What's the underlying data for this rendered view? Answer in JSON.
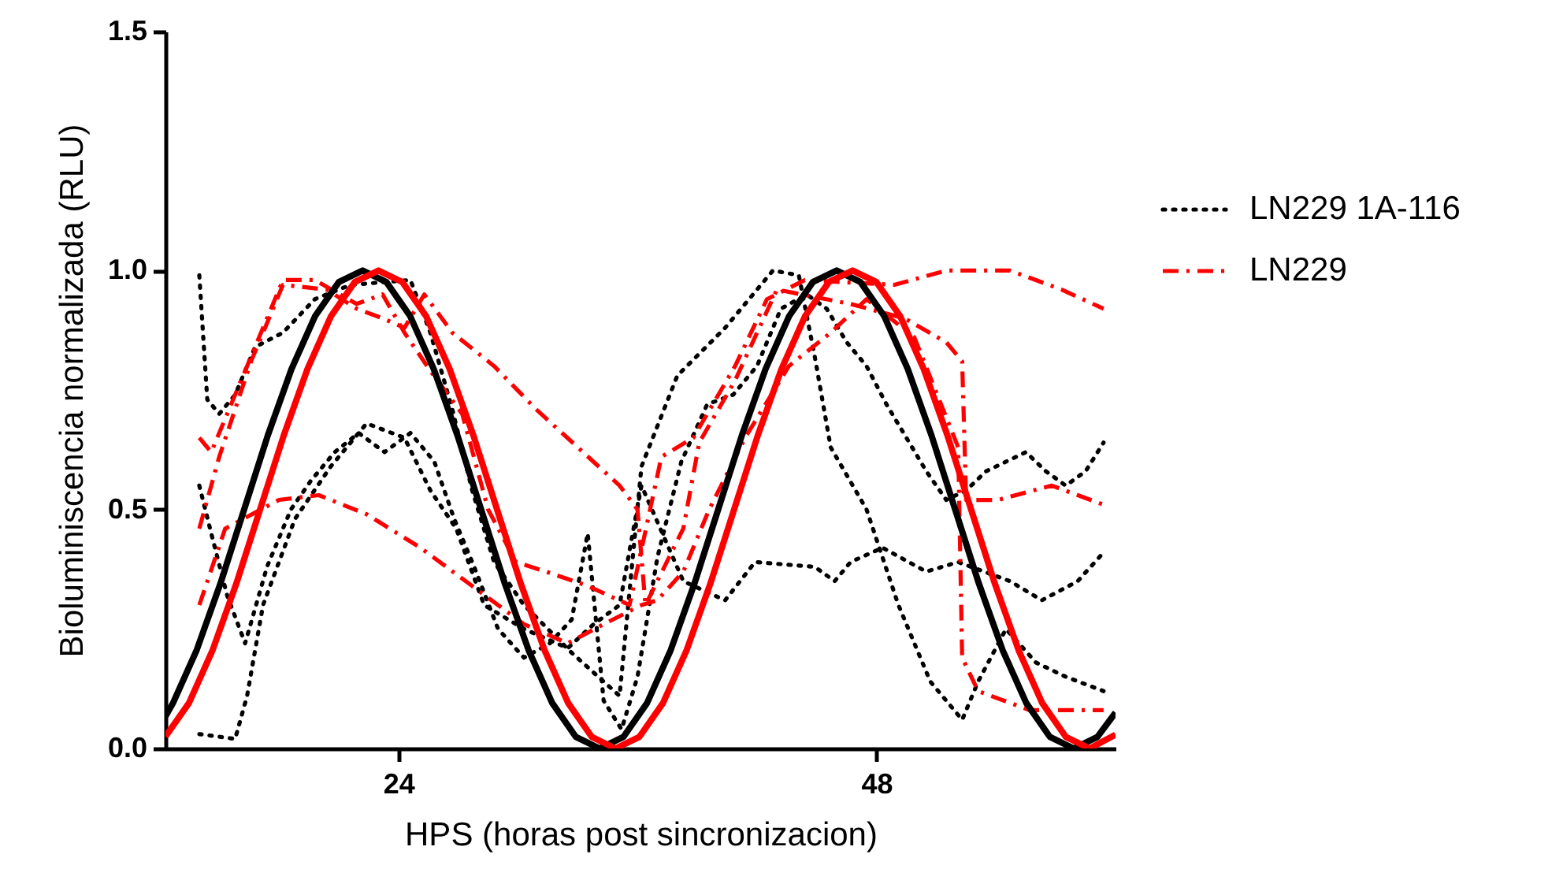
{
  "chart_data": {
    "type": "line",
    "xlabel": "HPS (horas post sincronizacion)",
    "ylabel": "Bioluminiscencia normalizada (RLU)",
    "xlim": [
      12.3,
      60
    ],
    "xticks": [
      24,
      48
    ],
    "ylim": [
      0,
      1.5
    ],
    "yticks": [
      {
        "value": 0,
        "label": "0.0"
      },
      0.5,
      {
        "value": 1,
        "label": "1.0"
      },
      1.5
    ],
    "grid": false,
    "legend": "right",
    "marker": "none",
    "series": [
      {
        "name": "LN229 1A-116",
        "color": "#000000",
        "line_style": "dotted",
        "x": [
          14.0,
          14.4,
          15.0,
          15.8,
          16.8,
          18.2,
          19.8,
          21.6,
          24.6,
          25.6,
          26.7,
          27.7,
          28.8,
          30.3,
          32.7,
          34.3,
          35.1,
          36.2,
          38.0,
          40.4,
          42.8,
          44.1,
          44.9,
          45.7,
          47.5,
          49.1,
          50.7,
          52.3,
          53.1,
          54.5,
          56.0,
          57.5,
          59.4
        ],
        "values": [
          0.99,
          0.73,
          0.7,
          0.74,
          0.84,
          0.87,
          0.94,
          0.97,
          0.98,
          0.87,
          0.71,
          0.54,
          0.39,
          0.3,
          0.2,
          0.14,
          0.11,
          0.59,
          0.78,
          0.88,
          1.0,
          0.99,
          0.82,
          0.63,
          0.5,
          0.3,
          0.14,
          0.06,
          0.14,
          0.25,
          0.18,
          0.15,
          0.12
        ]
      },
      {
        "color": "#000000",
        "line_style": "dotted",
        "x": [
          14.0,
          15.8,
          16.4,
          17.2,
          18.8,
          20.6,
          22.4,
          24.3,
          25.6,
          26.9,
          28.3,
          30.3,
          32.5,
          33.8,
          35.1,
          36.2,
          38.3,
          40.4,
          41.9,
          44.9,
          45.9,
          46.7,
          48.3,
          50.5,
          52.1,
          54.7,
          56.3,
          58.1,
          59.4
        ],
        "values": [
          0.03,
          0.02,
          0.11,
          0.3,
          0.48,
          0.59,
          0.68,
          0.65,
          0.54,
          0.46,
          0.3,
          0.25,
          0.21,
          0.26,
          0.3,
          0.55,
          0.35,
          0.31,
          0.39,
          0.38,
          0.35,
          0.39,
          0.42,
          0.37,
          0.39,
          0.35,
          0.31,
          0.35,
          0.41
        ]
      },
      {
        "color": "#000000",
        "line_style": "dotted",
        "x": [
          14.0,
          14.6,
          15.4,
          16.3,
          17.4,
          18.6,
          19.6,
          20.8,
          22.0,
          23.3,
          24.6,
          25.8,
          26.8,
          27.8,
          29.0,
          30.3,
          31.6,
          32.7,
          33.5,
          34.3,
          35.2,
          36.0,
          37.0,
          38.2,
          39.5,
          40.8,
          42.0,
          43.2,
          44.5,
          45.5,
          46.5,
          47.5,
          48.5,
          49.5,
          50.5,
          51.5,
          52.5,
          53.5,
          54.5,
          55.5,
          56.5,
          57.5,
          58.5,
          59.4
        ],
        "values": [
          0.55,
          0.45,
          0.32,
          0.22,
          0.38,
          0.5,
          0.56,
          0.62,
          0.66,
          0.62,
          0.66,
          0.6,
          0.48,
          0.38,
          0.25,
          0.19,
          0.22,
          0.27,
          0.45,
          0.1,
          0.04,
          0.15,
          0.4,
          0.6,
          0.72,
          0.74,
          0.8,
          0.92,
          0.95,
          0.92,
          0.85,
          0.8,
          0.72,
          0.65,
          0.58,
          0.52,
          0.54,
          0.58,
          0.6,
          0.62,
          0.58,
          0.55,
          0.58,
          0.64
        ]
      },
      {
        "name": "LN229",
        "color": "#ff0000",
        "line_style": "dashdot",
        "x": [
          14.0,
          14.6,
          15.8,
          16.9,
          18.2,
          19.8,
          21.9,
          23.2,
          24.3,
          25.6,
          27.2,
          28.5,
          29.9,
          31.4,
          33.5,
          35.6,
          37.2,
          38.8,
          40.9,
          42.5,
          44.4,
          48.9,
          51.5,
          54.7,
          57.3,
          59.4
        ],
        "values": [
          0.65,
          0.62,
          0.74,
          0.85,
          0.98,
          0.98,
          0.93,
          0.95,
          0.87,
          0.79,
          0.7,
          0.5,
          0.39,
          0.37,
          0.34,
          0.3,
          0.61,
          0.65,
          0.8,
          0.94,
          0.98,
          0.97,
          1.0,
          1.0,
          0.96,
          0.92
        ]
      },
      {
        "color": "#ff0000",
        "line_style": "dashdot",
        "x": [
          14.0,
          15.0,
          16.6,
          18.2,
          20.4,
          21.9,
          23.2,
          24.3,
          25.3,
          26.7,
          28.8,
          30.9,
          33.0,
          35.1,
          36.0,
          36.4,
          38.3,
          39.1,
          40.9,
          43.0,
          46.7,
          49.4,
          51.5,
          52.3,
          52.5,
          54.1,
          56.8,
          59.4
        ],
        "values": [
          0.46,
          0.61,
          0.81,
          0.97,
          0.96,
          0.92,
          0.9,
          0.88,
          0.95,
          0.87,
          0.8,
          0.71,
          0.63,
          0.55,
          0.5,
          0.3,
          0.46,
          0.64,
          0.77,
          0.96,
          0.93,
          0.9,
          0.85,
          0.81,
          0.52,
          0.52,
          0.55,
          0.51
        ]
      },
      {
        "color": "#ff0000",
        "line_style": "dashdot",
        "x": [
          14.0,
          15.3,
          18.0,
          20.0,
          22.4,
          25.1,
          27.7,
          30.3,
          32.5,
          34.3,
          36.2,
          37.0,
          38.3,
          39.6,
          41.4,
          43.6,
          45.7,
          47.5,
          49.9,
          52.1,
          52.3,
          53.1,
          55.7,
          59.4
        ],
        "values": [
          0.3,
          0.46,
          0.52,
          0.53,
          0.49,
          0.42,
          0.34,
          0.26,
          0.22,
          0.26,
          0.3,
          0.31,
          0.37,
          0.5,
          0.65,
          0.8,
          0.87,
          0.94,
          0.86,
          0.63,
          0.19,
          0.12,
          0.08,
          0.08
        ]
      },
      {
        "color": "#000000",
        "line_style": "solid",
        "x": [
          12.3,
          12.68,
          13.87,
          15.06,
          16.25,
          17.44,
          18.63,
          19.82,
          21.01,
          22.2,
          23.39,
          24.58,
          25.77,
          26.96,
          28.15,
          29.34,
          30.53,
          31.72,
          32.91,
          34.1,
          35.29,
          36.48,
          37.67,
          38.86,
          40.05,
          41.24,
          42.43,
          43.62,
          44.81,
          46.0,
          47.19,
          48.38,
          49.57,
          50.76,
          51.95,
          53.14,
          54.33,
          55.52,
          56.71,
          57.9,
          59.09,
          60.0
        ],
        "values": [
          0.067,
          0.095,
          0.206,
          0.345,
          0.5,
          0.655,
          0.794,
          0.905,
          0.976,
          1,
          0.976,
          0.905,
          0.794,
          0.655,
          0.5,
          0.345,
          0.206,
          0.095,
          0.024,
          0,
          0.024,
          0.095,
          0.206,
          0.345,
          0.5,
          0.655,
          0.794,
          0.905,
          0.976,
          1,
          0.976,
          0.905,
          0.794,
          0.655,
          0.5,
          0.345,
          0.206,
          0.095,
          0.024,
          0,
          0.024,
          0.075
        ]
      },
      {
        "color": "#ff0000",
        "line_style": "solid",
        "x": [
          12.3,
          13.48,
          14.67,
          15.86,
          17.05,
          18.24,
          19.43,
          20.62,
          21.81,
          23.0,
          24.19,
          25.38,
          26.57,
          27.76,
          28.95,
          30.14,
          31.33,
          32.52,
          33.71,
          34.9,
          36.09,
          37.28,
          38.47,
          39.66,
          40.85,
          42.04,
          43.23,
          44.42,
          45.61,
          46.8,
          47.99,
          49.18,
          50.37,
          51.56,
          52.75,
          53.94,
          55.13,
          56.32,
          57.51,
          58.7,
          60.0
        ],
        "values": [
          0.025,
          0.095,
          0.206,
          0.345,
          0.5,
          0.655,
          0.794,
          0.905,
          0.976,
          1,
          0.976,
          0.905,
          0.794,
          0.655,
          0.5,
          0.345,
          0.206,
          0.095,
          0.024,
          0,
          0.024,
          0.095,
          0.206,
          0.345,
          0.5,
          0.655,
          0.794,
          0.905,
          0.976,
          1,
          0.976,
          0.905,
          0.794,
          0.655,
          0.5,
          0.345,
          0.206,
          0.095,
          0.024,
          0,
          0.029
        ]
      }
    ]
  }
}
